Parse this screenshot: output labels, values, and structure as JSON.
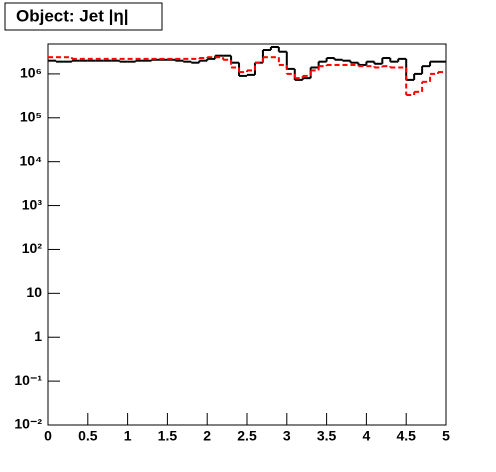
{
  "chart_data": {
    "type": "histogram",
    "title": "Object: Jet |η|",
    "bins": [
      0,
      0.1,
      0.2,
      0.3,
      0.4,
      0.5,
      0.6,
      0.7,
      0.8,
      0.9,
      1,
      1.1,
      1.2,
      1.3,
      1.4,
      1.5,
      1.6,
      1.7,
      1.8,
      1.9,
      2,
      2.1,
      2.2,
      2.3,
      2.4,
      2.5,
      2.6,
      2.7,
      2.8,
      2.9,
      3,
      3.1,
      3.2,
      3.3,
      3.4,
      3.5,
      3.6,
      3.7,
      3.8,
      3.9,
      4,
      4.1,
      4.2,
      4.3,
      4.4,
      4.5,
      4.6,
      4.7,
      4.8,
      4.9,
      5
    ],
    "series": [
      {
        "color": "#000000",
        "dash": false,
        "values": [
          2000000,
          1900000,
          1900000,
          2000000,
          2000000,
          2000000,
          2000000,
          2000000,
          2000000,
          1900000,
          1900000,
          2000000,
          2000000,
          2100000,
          2100000,
          2100000,
          2000000,
          1900000,
          1800000,
          2000000,
          2200000,
          2600000,
          2600000,
          1800000,
          900000,
          950000,
          1800000,
          3500000,
          4100000,
          3200000,
          1300000,
          730000,
          800000,
          1400000,
          1900000,
          2300000,
          2100000,
          2000000,
          1800000,
          1600000,
          1900000,
          1700000,
          2300000,
          1900000,
          2200000,
          730000,
          1000000,
          1500000,
          1900000,
          1900000
        ]
      },
      {
        "color": "#ff0000",
        "dash": true,
        "values": [
          2400000,
          2400000,
          2400000,
          2200000,
          2200000,
          2200000,
          2200000,
          2200000,
          2200000,
          2200000,
          2200000,
          2200000,
          2200000,
          2200000,
          2200000,
          2200000,
          2200000,
          2200000,
          2200000,
          2300000,
          2400000,
          2400000,
          2100000,
          1400000,
          1100000,
          1200000,
          1800000,
          2400000,
          2400000,
          1600000,
          1000000,
          800000,
          900000,
          1200000,
          1500000,
          1600000,
          1600000,
          1600000,
          1600000,
          1500000,
          1500000,
          1400000,
          1500000,
          1400000,
          1400000,
          330000,
          390000,
          660000,
          1000000,
          1100000
        ]
      }
    ],
    "xlim": [
      0,
      5
    ],
    "xticks": [
      0,
      0.5,
      1,
      1.5,
      2,
      2.5,
      3,
      3.5,
      4,
      4.5,
      5
    ],
    "ylim": [
      0.01,
      4800000
    ],
    "log_y": true,
    "yticks": [
      {
        "value": 0.01,
        "label": "10⁻²"
      },
      {
        "value": 0.1,
        "label": "10⁻¹"
      },
      1,
      10,
      {
        "value": 100,
        "label": "10²"
      },
      {
        "value": 1000,
        "label": "10³"
      },
      {
        "value": 10000,
        "label": "10⁴"
      },
      {
        "value": 100000,
        "label": "10⁵"
      },
      {
        "value": 1000000,
        "label": "10⁶"
      }
    ]
  }
}
